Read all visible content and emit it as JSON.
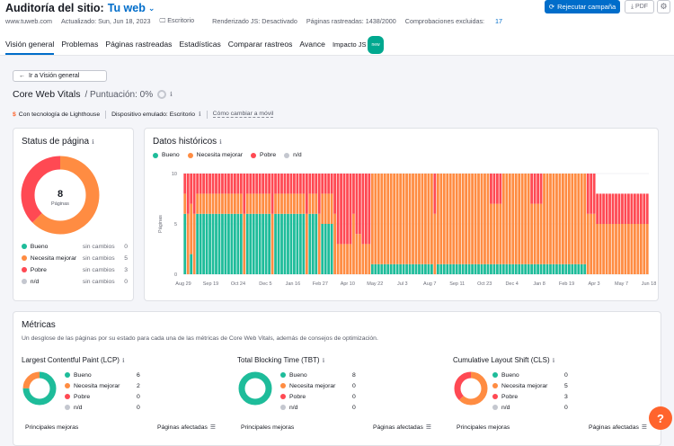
{
  "header": {
    "title": "Auditoría del sitio:",
    "site": "Tu web",
    "rerun_label": "Rejecutar campaña",
    "pdf_label": "PDF",
    "domain": "www.tuweb.com",
    "updated": "Actualizado: Sun, Jun 18, 2023",
    "device": "Escritorio",
    "js": "Renderizado JS: Desactivado",
    "crawled": "Páginas rastreadas: 1438/2000",
    "excluded_label": "Comprobaciones excluidas:",
    "excluded_count": "17"
  },
  "tabs": [
    {
      "label": "Visión general"
    },
    {
      "label": "Problemas"
    },
    {
      "label": "Páginas rastreadas"
    },
    {
      "label": "Estadísticas"
    },
    {
      "label": "Comparar rastreos"
    },
    {
      "label": "Avance"
    },
    {
      "label": "Impacto JS",
      "badge": "new"
    }
  ],
  "page": {
    "back_label": "Ir a Visión general",
    "title": "Core Web Vitals",
    "score": "/ Puntuación: 0%",
    "lighthouse": "Con tecnología de Lighthouse",
    "device": "Dispositivo emulado: Escritorio",
    "how_mobile": "Cómo cambiar a móvil"
  },
  "colors": {
    "good": "#1ebc9a",
    "needs": "#ff8c42",
    "poor": "#ff4953",
    "na": "#c4c7cf",
    "primary": "#006dca"
  },
  "status": {
    "title": "Status de página",
    "total": "8",
    "total_label": "Páginas",
    "rows": [
      {
        "label": "Bueno",
        "change": "sin cambios",
        "count": "0",
        "value": 0,
        "color": "#1ebc9a"
      },
      {
        "label": "Necesita mejorar",
        "change": "sin cambios",
        "count": "5",
        "value": 5,
        "color": "#ff8c42"
      },
      {
        "label": "Pobre",
        "change": "sin cambios",
        "count": "3",
        "value": 3,
        "color": "#ff4953"
      },
      {
        "label": "n/d",
        "change": "sin cambios",
        "count": "0",
        "value": 0,
        "color": "#c4c7cf"
      }
    ]
  },
  "history": {
    "title": "Datos históricos",
    "legend": [
      {
        "label": "Bueno",
        "color": "#1ebc9a"
      },
      {
        "label": "Necesita mejorar",
        "color": "#ff8c42"
      },
      {
        "label": "Pobre",
        "color": "#ff4953"
      },
      {
        "label": "n/d",
        "color": "#c4c7cf"
      }
    ]
  },
  "chart_data": {
    "type": "bar",
    "stacked": true,
    "ylabel": "Páginas",
    "ylim": [
      0,
      10
    ],
    "yticks": [
      0,
      5,
      10
    ],
    "xticks": [
      "Aug 29",
      "Sep 19",
      "Oct 24",
      "Dec 5",
      "Jan 16",
      "Feb 27",
      "Apr 10",
      "May 22",
      "Jul 3",
      "Aug 7",
      "Sep 11",
      "Oct 23",
      "Dec 4",
      "Jan 8",
      "Feb 19",
      "Apr 3",
      "May 7",
      "Jun 18"
    ],
    "segments": [
      {
        "bars": 1,
        "good": 6,
        "needs": 2,
        "poor": 2
      },
      {
        "bars": 1,
        "good": 0,
        "needs": 6,
        "poor": 4
      },
      {
        "bars": 1,
        "good": 2,
        "needs": 5,
        "poor": 3
      },
      {
        "bars": 1,
        "good": 0,
        "needs": 6,
        "poor": 4
      },
      {
        "bars": 15,
        "good": 6,
        "needs": 2,
        "poor": 2
      },
      {
        "bars": 1,
        "good": 0,
        "needs": 6,
        "poor": 4
      },
      {
        "bars": 8,
        "good": 6,
        "needs": 2,
        "poor": 2
      },
      {
        "bars": 1,
        "good": 0,
        "needs": 6,
        "poor": 4
      },
      {
        "bars": 10,
        "good": 6,
        "needs": 2,
        "poor": 2
      },
      {
        "bars": 1,
        "good": 0,
        "needs": 6,
        "poor": 4
      },
      {
        "bars": 3,
        "good": 6,
        "needs": 2,
        "poor": 2
      },
      {
        "bars": 1,
        "good": 0,
        "needs": 6,
        "poor": 4
      },
      {
        "bars": 4,
        "good": 5,
        "needs": 3,
        "poor": 2
      },
      {
        "bars": 1,
        "good": 0,
        "needs": 6,
        "poor": 4
      },
      {
        "bars": 5,
        "good": 0,
        "needs": 3,
        "poor": 7
      },
      {
        "bars": 1,
        "good": 0,
        "needs": 6,
        "poor": 4
      },
      {
        "bars": 2,
        "good": 0,
        "needs": 4,
        "poor": 6
      },
      {
        "bars": 3,
        "good": 0,
        "needs": 3,
        "poor": 7
      },
      {
        "bars": 20,
        "good": 1,
        "needs": 9,
        "poor": 0
      },
      {
        "bars": 1,
        "good": 0,
        "needs": 6,
        "poor": 4
      },
      {
        "bars": 17,
        "good": 1,
        "needs": 9,
        "poor": 0
      },
      {
        "bars": 4,
        "good": 1,
        "needs": 6,
        "poor": 3
      },
      {
        "bars": 9,
        "good": 1,
        "needs": 9,
        "poor": 0
      },
      {
        "bars": 4,
        "good": 1,
        "needs": 6,
        "poor": 3
      },
      {
        "bars": 14,
        "good": 1,
        "needs": 9,
        "poor": 0
      },
      {
        "bars": 3,
        "good": 0,
        "needs": 6,
        "poor": 4
      },
      {
        "bars": 17,
        "good": 0,
        "needs": 5,
        "poor": 3
      }
    ]
  },
  "metrics": {
    "title": "Métricas",
    "description": "Un desglose de las páginas por su estado para cada una de las métricas de Core Web Vitals, además de consejos de optimización.",
    "table_col1": "Principales mejoras",
    "table_col2": "Páginas afectadas",
    "items": [
      {
        "title": "Largest Contentful Paint (LCP)",
        "rows": [
          {
            "label": "Bueno",
            "count": "6",
            "value": 6,
            "color": "#1ebc9a"
          },
          {
            "label": "Necesita mejorar",
            "count": "2",
            "value": 2,
            "color": "#ff8c42"
          },
          {
            "label": "Pobre",
            "count": "0",
            "value": 0,
            "color": "#ff4953"
          },
          {
            "label": "n/d",
            "count": "0",
            "value": 0,
            "color": "#c4c7cf"
          }
        ]
      },
      {
        "title": "Total Blocking Time (TBT)",
        "rows": [
          {
            "label": "Bueno",
            "count": "8",
            "value": 8,
            "color": "#1ebc9a"
          },
          {
            "label": "Necesita mejorar",
            "count": "0",
            "value": 0,
            "color": "#ff8c42"
          },
          {
            "label": "Pobre",
            "count": "0",
            "value": 0,
            "color": "#ff4953"
          },
          {
            "label": "n/d",
            "count": "0",
            "value": 0,
            "color": "#c4c7cf"
          }
        ]
      },
      {
        "title": "Cumulative Layout Shift (CLS)",
        "rows": [
          {
            "label": "Bueno",
            "count": "0",
            "value": 0,
            "color": "#1ebc9a"
          },
          {
            "label": "Necesita mejorar",
            "count": "5",
            "value": 5,
            "color": "#ff8c42"
          },
          {
            "label": "Pobre",
            "count": "3",
            "value": 3,
            "color": "#ff4953"
          },
          {
            "label": "n/d",
            "count": "0",
            "value": 0,
            "color": "#c4c7cf"
          }
        ]
      }
    ]
  },
  "help_label": "?"
}
